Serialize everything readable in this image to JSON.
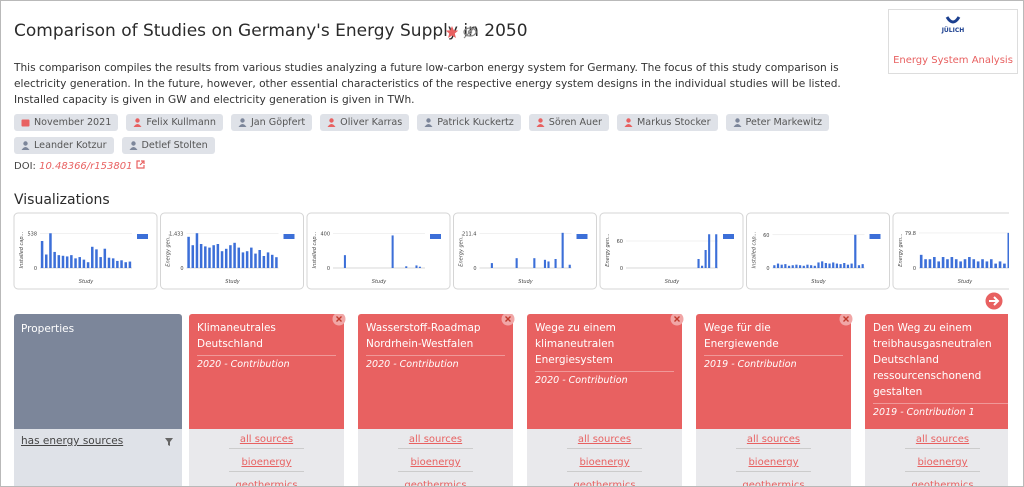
{
  "header": {
    "title": "Comparison of Studies on Germany's Energy Supply in 2050",
    "logo_brand": "JÜLICH",
    "logo_caption": "Energy System Analysis"
  },
  "description": "This comparison compiles the results from various studies analyzing a future low-carbon energy system for Germany. The focus of this study comparison is electricity generation. In the future, however, other essential characteristics of the respective energy system designs in the individual studies will be listed. Installed capacity is given in GW and electricity generation is given in TWh.",
  "tags": [
    {
      "text": "November 2021",
      "icon": "calendar",
      "icon_color": "#e86161"
    },
    {
      "text": "Felix Kullmann",
      "icon": "person",
      "icon_color": "#e86161"
    },
    {
      "text": "Jan Göpfert",
      "icon": "person",
      "icon_color": "#7c869a"
    },
    {
      "text": "Oliver Karras",
      "icon": "person",
      "icon_color": "#e86161"
    },
    {
      "text": "Patrick Kuckertz",
      "icon": "person",
      "icon_color": "#7c869a"
    },
    {
      "text": "Sören Auer",
      "icon": "person",
      "icon_color": "#e86161"
    },
    {
      "text": "Markus Stocker",
      "icon": "person",
      "icon_color": "#e86161"
    },
    {
      "text": "Peter Markewitz",
      "icon": "person",
      "icon_color": "#7c869a"
    },
    {
      "text": "Leander Kotzur",
      "icon": "person",
      "icon_color": "#7c869a"
    },
    {
      "text": "Detlef Stolten",
      "icon": "person",
      "icon_color": "#7c869a"
    }
  ],
  "doi": {
    "label": "DOI:",
    "link": "10.48366/r153801"
  },
  "visualizations": {
    "heading": "Visualizations",
    "charts": [
      {
        "type": "bar",
        "y_label": "Installed cap...",
        "x_label": "Study",
        "color": "#3c6fd8",
        "ylim": [
          0,
          560
        ],
        "yticks": [
          0,
          538
        ],
        "values": [
          420,
          210,
          540,
          250,
          200,
          190,
          180,
          200,
          150,
          170,
          130,
          90,
          330,
          290,
          170,
          300,
          160,
          150,
          110,
          120,
          90,
          100
        ]
      },
      {
        "type": "bar",
        "y_label": "Energy gen...",
        "x_label": "Study",
        "color": "#3c6fd8",
        "ylim": [
          0,
          1500
        ],
        "yticks": [
          0,
          {
            "value": 1433,
            "label": "1,433"
          }
        ],
        "values": [
          1300,
          950,
          1450,
          1000,
          900,
          850,
          950,
          1000,
          700,
          800,
          950,
          1050,
          850,
          650,
          700,
          850,
          600,
          750,
          500,
          650,
          550,
          450
        ]
      },
      {
        "type": "bar",
        "y_label": "Installed cap...",
        "x_label": "Study",
        "color": "#3c6fd8",
        "ylim": [
          0,
          420
        ],
        "yticks": [
          0,
          400
        ],
        "values": [
          0,
          0,
          0,
          150,
          0,
          0,
          0,
          0,
          0,
          0,
          0,
          0,
          0,
          0,
          0,
          0,
          0,
          380,
          0,
          0,
          0,
          20,
          0,
          0,
          30,
          15,
          0
        ]
      },
      {
        "type": "bar",
        "y_label": "Energy gen...",
        "x_label": "Study",
        "color": "#3c6fd8",
        "ylim": [
          0,
          220
        ],
        "yticks": [
          0,
          211.4
        ],
        "values": [
          0,
          0,
          0,
          30,
          0,
          0,
          0,
          0,
          0,
          0,
          60,
          0,
          0,
          0,
          0,
          60,
          0,
          0,
          50,
          40,
          0,
          55,
          0,
          215,
          0,
          20
        ]
      },
      {
        "type": "bar",
        "y_label": "Energy gen...",
        "x_label": "Study",
        "color": "#3c6fd8",
        "ylim": [
          0,
          80
        ],
        "yticks": [
          0,
          60
        ],
        "values": [
          0,
          0,
          0,
          0,
          0,
          0,
          0,
          0,
          0,
          0,
          0,
          0,
          0,
          0,
          0,
          0,
          0,
          0,
          0,
          0,
          20,
          5,
          40,
          75,
          0,
          75
        ]
      },
      {
        "type": "bar",
        "y_label": "Installed cap...",
        "x_label": "Study",
        "color": "#3c6fd8",
        "ylim": [
          0,
          65
        ],
        "yticks": [
          0,
          60
        ],
        "values": [
          5,
          8,
          6,
          7,
          4,
          5,
          6,
          5,
          4,
          6,
          5,
          4,
          10,
          12,
          9,
          8,
          10,
          8,
          7,
          9,
          6,
          8,
          60,
          5,
          7
        ]
      },
      {
        "type": "bar",
        "y_label": "Energy gen...",
        "x_label": "Study",
        "color": "#3c6fd8",
        "ylim": [
          0,
          82
        ],
        "yticks": [
          0,
          79.8
        ],
        "values": [
          30,
          20,
          20,
          25,
          15,
          25,
          20,
          25,
          20,
          15,
          20,
          25,
          20,
          15,
          20,
          15,
          20,
          10,
          15,
          10,
          80
        ]
      }
    ]
  },
  "comparison": {
    "properties_header": "Properties",
    "property": "has energy sources",
    "contributions": [
      {
        "title": "Klimaneutrales Deutschland",
        "subtitle": "2020 - Contribution",
        "values": [
          "all sources",
          "bioenergy",
          "geothermics"
        ]
      },
      {
        "title": "Wasserstoff-Roadmap Nordrhein-Westfalen",
        "subtitle": "2020 - Contribution",
        "values": [
          "all sources",
          "bioenergy",
          "geothermics"
        ]
      },
      {
        "title": "Wege zu einem klimaneutralen Energiesystem",
        "subtitle": "2020 - Contribution",
        "values": [
          "all sources",
          "bioenergy",
          "geothermics"
        ]
      },
      {
        "title": "Wege für die Energiewende",
        "subtitle": "2019 - Contribution",
        "values": [
          "all sources",
          "bioenergy",
          "geothermics"
        ]
      },
      {
        "title": "Den Weg zu einem treibhausgasneutralen Deutschland ressourcenschonend gestalten",
        "subtitle": "2019 - Contribution 1",
        "values": [
          "all sources",
          "bioenergy",
          "geothermics"
        ]
      }
    ]
  }
}
